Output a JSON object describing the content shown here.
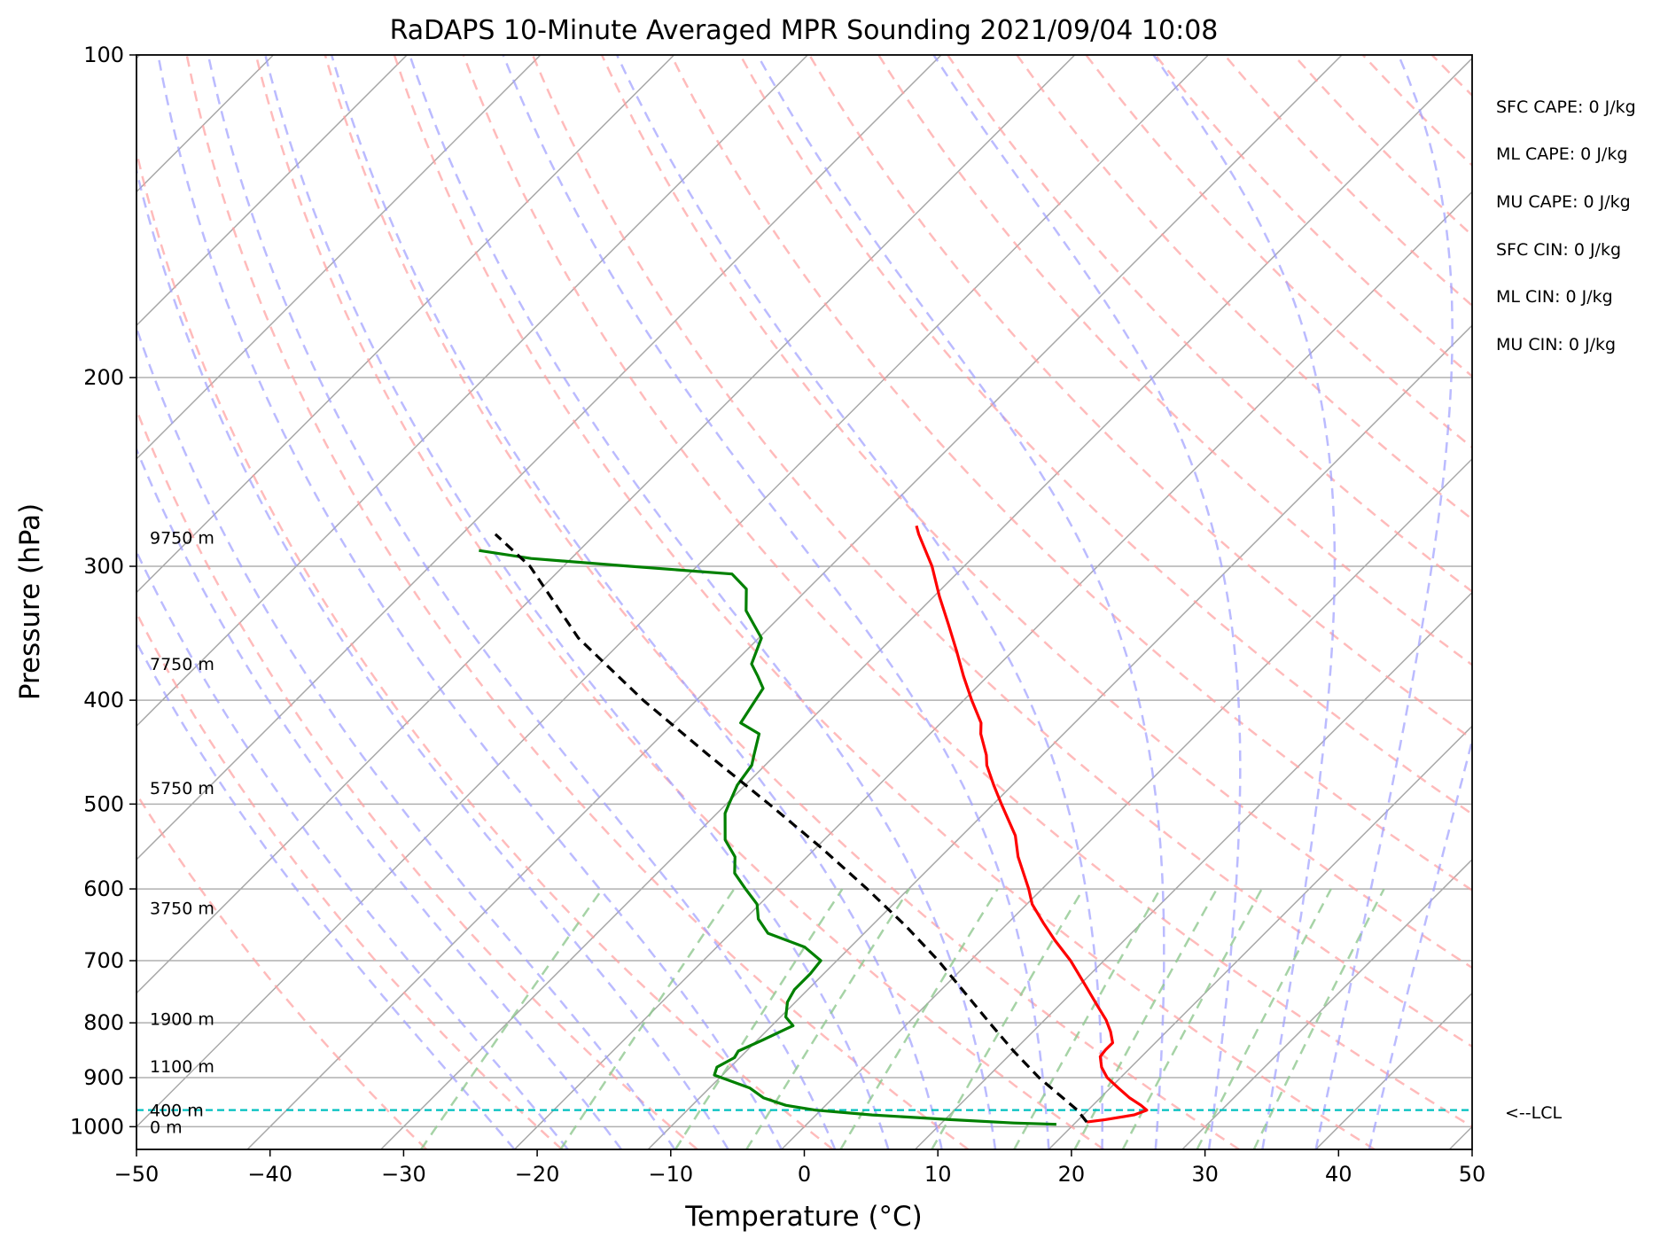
{
  "chart_data": {
    "type": "line",
    "title": "RaDAPS 10-Minute Averaged MPR Sounding 2021/09/04 10:08",
    "xlabel": "Temperature (°C)",
    "ylabel": "Pressure (hPa)",
    "xlim": [
      -50,
      50
    ],
    "ylim": [
      1050,
      100
    ],
    "y_scale": "log",
    "x_ticks": [
      "−50",
      "−40",
      "−30",
      "−20",
      "−10",
      "0",
      "10",
      "20",
      "30",
      "40",
      "50"
    ],
    "y_ticks": [
      "100",
      "200",
      "300",
      "400",
      "500",
      "600",
      "700",
      "800",
      "900",
      "1000"
    ],
    "skew_deg": 45,
    "grid": true,
    "temperature_color": "#ff0000",
    "dewpoint_color": "#008000",
    "parcel_color": "#000000",
    "dry_adiabat_color": "#ff9e9e",
    "moist_adiabat_color": "#9e9eff",
    "mixing_ratio_color": "#90c890",
    "lcl_color": "#00bfbf",
    "series": [
      {
        "key": "temperature",
        "points": [
          [
            990,
            20.8
          ],
          [
            985,
            22.0
          ],
          [
            975,
            23.8
          ],
          [
            965,
            24.4
          ],
          [
            955,
            23.6
          ],
          [
            940,
            22.2
          ],
          [
            920,
            20.6
          ],
          [
            900,
            19.0
          ],
          [
            880,
            17.8
          ],
          [
            860,
            16.9
          ],
          [
            848,
            16.8
          ],
          [
            835,
            16.8
          ],
          [
            815,
            15.8
          ],
          [
            795,
            14.6
          ],
          [
            770,
            12.8
          ],
          [
            740,
            10.6
          ],
          [
            700,
            7.5
          ],
          [
            670,
            4.8
          ],
          [
            645,
            2.6
          ],
          [
            620,
            0.4
          ],
          [
            600,
            -1.0
          ],
          [
            560,
            -4.2
          ],
          [
            535,
            -6.0
          ],
          [
            500,
            -9.4
          ],
          [
            480,
            -11.4
          ],
          [
            460,
            -13.4
          ],
          [
            450,
            -14.2
          ],
          [
            430,
            -16.2
          ],
          [
            420,
            -17.0
          ],
          [
            400,
            -19.4
          ],
          [
            380,
            -21.8
          ],
          [
            360,
            -24.2
          ],
          [
            340,
            -26.8
          ],
          [
            320,
            -29.6
          ],
          [
            300,
            -32.4
          ],
          [
            280,
            -35.8
          ],
          [
            275,
            -36.6
          ]
        ]
      },
      {
        "key": "dewpoint",
        "points": [
          [
            995,
            18.7
          ],
          [
            992,
            15.4
          ],
          [
            985,
            10.4
          ],
          [
            975,
            4.2
          ],
          [
            965,
            -0.4
          ],
          [
            955,
            -3.0
          ],
          [
            940,
            -5.2
          ],
          [
            920,
            -7.0
          ],
          [
            895,
            -10.6
          ],
          [
            880,
            -11.0
          ],
          [
            862,
            -10.4
          ],
          [
            850,
            -10.6
          ],
          [
            830,
            -9.6
          ],
          [
            805,
            -8.4
          ],
          [
            790,
            -9.6
          ],
          [
            765,
            -10.6
          ],
          [
            745,
            -11.0
          ],
          [
            720,
            -11.0
          ],
          [
            700,
            -11.2
          ],
          [
            680,
            -13.4
          ],
          [
            660,
            -17.2
          ],
          [
            640,
            -19.0
          ],
          [
            620,
            -20.2
          ],
          [
            600,
            -22.2
          ],
          [
            580,
            -24.2
          ],
          [
            560,
            -25.4
          ],
          [
            540,
            -27.4
          ],
          [
            510,
            -29.4
          ],
          [
            500,
            -29.8
          ],
          [
            480,
            -30.6
          ],
          [
            460,
            -31.0
          ],
          [
            450,
            -31.6
          ],
          [
            430,
            -32.8
          ],
          [
            420,
            -35.0
          ],
          [
            400,
            -35.6
          ],
          [
            390,
            -35.9
          ],
          [
            380,
            -37.2
          ],
          [
            370,
            -38.6
          ],
          [
            350,
            -39.8
          ],
          [
            330,
            -43.0
          ],
          [
            315,
            -44.6
          ],
          [
            305,
            -46.8
          ],
          [
            300,
            -55.0
          ],
          [
            295,
            -63.0
          ],
          [
            290,
            -67.5
          ]
        ]
      },
      {
        "key": "parcel",
        "points": [
          [
            990,
            20.8
          ],
          [
            965,
            19.2
          ],
          [
            900,
            13.9
          ],
          [
            850,
            10.0
          ],
          [
            800,
            6.1
          ],
          [
            750,
            2.0
          ],
          [
            700,
            -2.4
          ],
          [
            650,
            -7.4
          ],
          [
            600,
            -13.1
          ],
          [
            550,
            -19.5
          ],
          [
            500,
            -26.8
          ],
          [
            450,
            -35.0
          ],
          [
            400,
            -44.0
          ],
          [
            350,
            -53.5
          ],
          [
            300,
            -62.5
          ],
          [
            280,
            -67.5
          ]
        ]
      }
    ],
    "lcl_pressure": 965,
    "lcl_label": "<--LCL",
    "height_labels": [
      {
        "p": 282,
        "label": "9750 m"
      },
      {
        "p": 370,
        "label": "7750 m"
      },
      {
        "p": 483,
        "label": "5750 m"
      },
      {
        "p": 625,
        "label": "3750 m"
      },
      {
        "p": 793,
        "label": "1900 m"
      },
      {
        "p": 878,
        "label": "1100 m"
      },
      {
        "p": 965,
        "label": "400 m"
      },
      {
        "p": 1000,
        "label": "0 m"
      }
    ],
    "indices": [
      {
        "label": "SFC CAPE: 0 J/kg"
      },
      {
        "label": "ML CAPE: 0 J/kg"
      },
      {
        "label": "MU CAPE: 0 J/kg"
      },
      {
        "label": "SFC CIN: 0 J/kg"
      },
      {
        "label": "ML CIN: 0 J/kg"
      },
      {
        "label": "MU CIN: 0 J/kg"
      }
    ]
  }
}
